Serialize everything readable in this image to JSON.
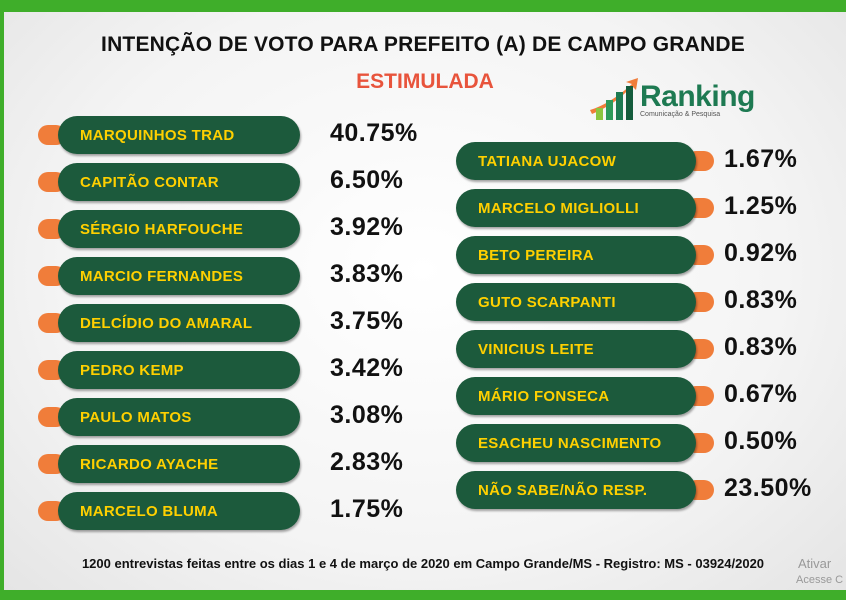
{
  "header": {
    "title": "INTENÇÃO DE VOTO PARA PREFEITO (A) DE CAMPO GRANDE",
    "subtitle": "ESTIMULADA"
  },
  "logo": {
    "name": "Ranking",
    "tagline": "Comunicação & Pesquisa",
    "color": "#1e7a52"
  },
  "footer": {
    "note": "1200 entrevistas feitas entre os dias 1 e 4 de março de 2020 em Campo Grande/MS - Registro: MS - 03924/2020"
  },
  "watermark": {
    "line1": "Ativar",
    "line2": "Acesse C"
  },
  "colors": {
    "pill": "#1c5a3c",
    "pill_text": "#ffd000",
    "dot": "#f07d3a",
    "accent_green": "#3fae2a",
    "subtitle": "#e8543c"
  },
  "chart_data": {
    "type": "table",
    "title": "INTENÇÃO DE VOTO PARA PREFEITO (A) DE CAMPO GRANDE",
    "subtitle": "ESTIMULADA",
    "columns": [
      [
        {
          "name": "MARQUINHOS TRAD",
          "label": "40.75%",
          "value": 40.75
        },
        {
          "name": "CAPITÃO CONTAR",
          "label": "6.50%",
          "value": 6.5
        },
        {
          "name": "SÉRGIO HARFOUCHE",
          "label": "3.92%",
          "value": 3.92
        },
        {
          "name": "MARCIO FERNANDES",
          "label": "3.83%",
          "value": 3.83
        },
        {
          "name": "DELCÍDIO DO AMARAL",
          "label": "3.75%",
          "value": 3.75
        },
        {
          "name": "PEDRO KEMP",
          "label": "3.42%",
          "value": 3.42
        },
        {
          "name": "PAULO MATOS",
          "label": "3.08%",
          "value": 3.08
        },
        {
          "name": "RICARDO AYACHE",
          "label": "2.83%",
          "value": 2.83
        },
        {
          "name": "MARCELO BLUMA",
          "label": "1.75%",
          "value": 1.75
        }
      ],
      [
        {
          "name": "TATIANA UJACOW",
          "label": "1.67%",
          "value": 1.67
        },
        {
          "name": "MARCELO MIGLIOLLI",
          "label": "1.25%",
          "value": 1.25
        },
        {
          "name": "BETO PEREIRA",
          "label": "0.92%",
          "value": 0.92
        },
        {
          "name": "GUTO SCARPANTI",
          "label": "0.83%",
          "value": 0.83
        },
        {
          "name": "VINICIUS LEITE",
          "label": "0.83%",
          "value": 0.83
        },
        {
          "name": "MÁRIO FONSECA",
          "label": "0.67%",
          "value": 0.67
        },
        {
          "name": "ESACHEU NASCIMENTO",
          "label": "0.50%",
          "value": 0.5
        },
        {
          "name": "NÃO SABE/NÃO RESP.",
          "label": "23.50%",
          "value": 23.5
        }
      ]
    ]
  }
}
